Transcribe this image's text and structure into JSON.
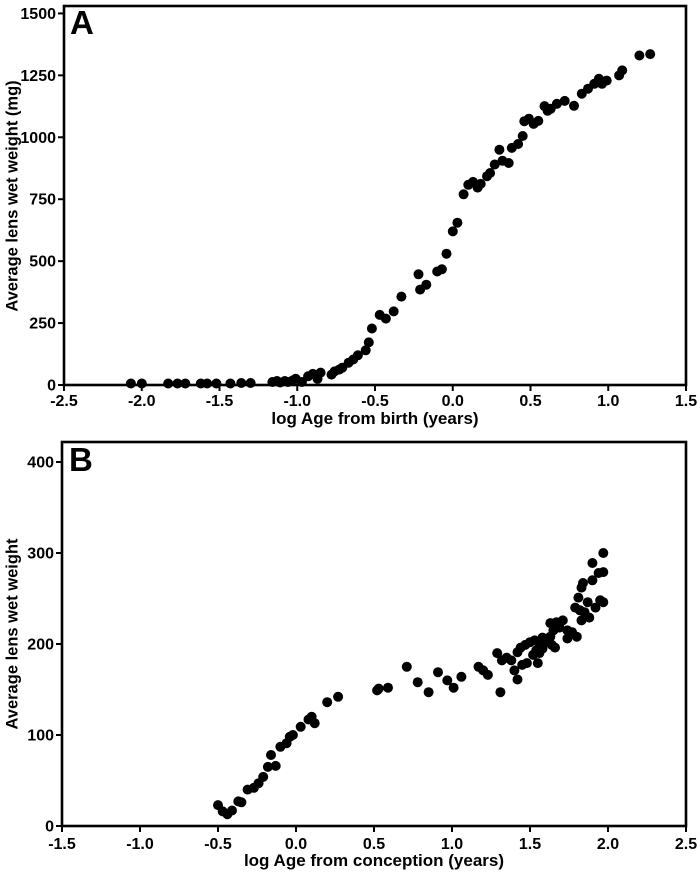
{
  "page": {
    "background": "#ffffff"
  },
  "figure": {
    "marker_color": "#000000",
    "axis_color": "#000000",
    "marker_shape": "filled-circle"
  },
  "chart_data": [
    {
      "type": "scatter",
      "panel_label": "A",
      "xlabel": "log Age from birth (years)",
      "ylabel": "Average lens wet weight (mg)",
      "xlim": [
        -2.5,
        1.5
      ],
      "ylim": [
        0,
        1530
      ],
      "xticks": [
        -2.5,
        -2.0,
        -1.5,
        -1.0,
        -0.5,
        0.0,
        0.5,
        1.0,
        1.5
      ],
      "xtick_labels": [
        "-2.5",
        "-2.0",
        "-1.5",
        "-1.0",
        "-0.5",
        "0.0",
        "0.5",
        "1.0",
        "1.5"
      ],
      "yticks": [
        0,
        250,
        500,
        750,
        1000,
        1250,
        1500
      ],
      "ytick_labels": [
        "0",
        "250",
        "500",
        "750",
        "1000",
        "1250",
        "1500"
      ],
      "grid": false,
      "legend": "none",
      "points": [
        [
          -2.07,
          6
        ],
        [
          -2.0,
          6
        ],
        [
          -1.83,
          6
        ],
        [
          -1.77,
          6
        ],
        [
          -1.72,
          6
        ],
        [
          -1.62,
          6
        ],
        [
          -1.58,
          6
        ],
        [
          -1.52,
          6
        ],
        [
          -1.43,
          6
        ],
        [
          -1.36,
          8
        ],
        [
          -1.3,
          8
        ],
        [
          -1.16,
          12
        ],
        [
          -1.13,
          16
        ],
        [
          -1.11,
          10
        ],
        [
          -1.08,
          16
        ],
        [
          -1.06,
          12
        ],
        [
          -1.03,
          18
        ],
        [
          -1.01,
          25
        ],
        [
          -0.97,
          12
        ],
        [
          -0.93,
          35
        ],
        [
          -0.9,
          45
        ],
        [
          -0.87,
          25
        ],
        [
          -0.85,
          50
        ],
        [
          -0.78,
          42
        ],
        [
          -0.76,
          55
        ],
        [
          -0.73,
          62
        ],
        [
          -0.71,
          70
        ],
        [
          -0.67,
          90
        ],
        [
          -0.64,
          103
        ],
        [
          -0.61,
          120
        ],
        [
          -0.56,
          140
        ],
        [
          -0.54,
          172
        ],
        [
          -0.52,
          228
        ],
        [
          -0.47,
          283
        ],
        [
          -0.43,
          268
        ],
        [
          -0.38,
          297
        ],
        [
          -0.33,
          357
        ],
        [
          -0.22,
          447
        ],
        [
          -0.21,
          385
        ],
        [
          -0.17,
          405
        ],
        [
          -0.1,
          458
        ],
        [
          -0.07,
          467
        ],
        [
          -0.04,
          530
        ],
        [
          0.0,
          620
        ],
        [
          0.03,
          655
        ],
        [
          0.07,
          770
        ],
        [
          0.1,
          808
        ],
        [
          0.13,
          820
        ],
        [
          0.16,
          797
        ],
        [
          0.18,
          812
        ],
        [
          0.22,
          843
        ],
        [
          0.24,
          856
        ],
        [
          0.27,
          890
        ],
        [
          0.3,
          950
        ],
        [
          0.32,
          905
        ],
        [
          0.36,
          896
        ],
        [
          0.38,
          957
        ],
        [
          0.42,
          973
        ],
        [
          0.45,
          1005
        ],
        [
          0.46,
          1065
        ],
        [
          0.49,
          1075
        ],
        [
          0.52,
          1054
        ],
        [
          0.55,
          1066
        ],
        [
          0.59,
          1126
        ],
        [
          0.61,
          1107
        ],
        [
          0.63,
          1115
        ],
        [
          0.67,
          1135
        ],
        [
          0.72,
          1147
        ],
        [
          0.78,
          1127
        ],
        [
          0.83,
          1176
        ],
        [
          0.87,
          1196
        ],
        [
          0.91,
          1216
        ],
        [
          0.94,
          1236
        ],
        [
          0.96,
          1216
        ],
        [
          0.99,
          1229
        ],
        [
          1.07,
          1250
        ],
        [
          1.09,
          1270
        ],
        [
          1.2,
          1330
        ],
        [
          1.27,
          1336
        ]
      ]
    },
    {
      "type": "scatter",
      "panel_label": "B",
      "xlabel": "log Age from conception (years)",
      "ylabel": "Average lens wet weight",
      "xlim": [
        -1.5,
        2.5
      ],
      "ylim": [
        0,
        422
      ],
      "xticks": [
        -1.5,
        -1.0,
        -0.5,
        0.0,
        0.5,
        1.0,
        1.5,
        2.0,
        2.5
      ],
      "xtick_labels": [
        "-1.5",
        "-1.0",
        "-0.5",
        "0.0",
        "0.5",
        "1.0",
        "1.5",
        "2.0",
        "2.5"
      ],
      "yticks": [
        0,
        100,
        200,
        300,
        400
      ],
      "ytick_labels": [
        "0",
        "100",
        "200",
        "300",
        "400"
      ],
      "grid": false,
      "legend": "none",
      "points": [
        [
          -0.5,
          23
        ],
        [
          -0.47,
          16
        ],
        [
          -0.44,
          13
        ],
        [
          -0.41,
          17
        ],
        [
          -0.37,
          27
        ],
        [
          -0.35,
          26
        ],
        [
          -0.31,
          40
        ],
        [
          -0.27,
          42
        ],
        [
          -0.24,
          47
        ],
        [
          -0.21,
          54
        ],
        [
          -0.18,
          65
        ],
        [
          -0.16,
          78
        ],
        [
          -0.13,
          66
        ],
        [
          -0.1,
          87
        ],
        [
          -0.06,
          91
        ],
        [
          -0.04,
          98
        ],
        [
          -0.02,
          100
        ],
        [
          0.03,
          109
        ],
        [
          0.08,
          117
        ],
        [
          0.1,
          120
        ],
        [
          0.12,
          113
        ],
        [
          0.2,
          136
        ],
        [
          0.27,
          142
        ],
        [
          0.52,
          149
        ],
        [
          0.53,
          151
        ],
        [
          0.59,
          152
        ],
        [
          0.71,
          175
        ],
        [
          0.78,
          158
        ],
        [
          0.85,
          147
        ],
        [
          0.91,
          169
        ],
        [
          0.97,
          160
        ],
        [
          1.01,
          152
        ],
        [
          1.06,
          164
        ],
        [
          1.17,
          175
        ],
        [
          1.2,
          171
        ],
        [
          1.23,
          166
        ],
        [
          1.29,
          190
        ],
        [
          1.31,
          147
        ],
        [
          1.32,
          182
        ],
        [
          1.35,
          185
        ],
        [
          1.38,
          182
        ],
        [
          1.4,
          171
        ],
        [
          1.42,
          191
        ],
        [
          1.42,
          161
        ],
        [
          1.44,
          196
        ],
        [
          1.45,
          177
        ],
        [
          1.47,
          199
        ],
        [
          1.48,
          179
        ],
        [
          1.5,
          202
        ],
        [
          1.52,
          188
        ],
        [
          1.53,
          204
        ],
        [
          1.54,
          193
        ],
        [
          1.55,
          179
        ],
        [
          1.56,
          190
        ],
        [
          1.56,
          201
        ],
        [
          1.58,
          207
        ],
        [
          1.58,
          195
        ],
        [
          1.6,
          202
        ],
        [
          1.63,
          208
        ],
        [
          1.63,
          223
        ],
        [
          1.64,
          199
        ],
        [
          1.65,
          215
        ],
        [
          1.66,
          196
        ],
        [
          1.67,
          224
        ],
        [
          1.69,
          218
        ],
        [
          1.71,
          226
        ],
        [
          1.74,
          215
        ],
        [
          1.74,
          206
        ],
        [
          1.77,
          213
        ],
        [
          1.79,
          240
        ],
        [
          1.8,
          208
        ],
        [
          1.81,
          251
        ],
        [
          1.82,
          237
        ],
        [
          1.83,
          262
        ],
        [
          1.83,
          226
        ],
        [
          1.84,
          267
        ],
        [
          1.85,
          235
        ],
        [
          1.87,
          246
        ],
        [
          1.88,
          229
        ],
        [
          1.9,
          289
        ],
        [
          1.9,
          270
        ],
        [
          1.92,
          240
        ],
        [
          1.94,
          278
        ],
        [
          1.95,
          248
        ],
        [
          1.97,
          300
        ],
        [
          1.97,
          279
        ],
        [
          1.97,
          246
        ]
      ]
    }
  ]
}
